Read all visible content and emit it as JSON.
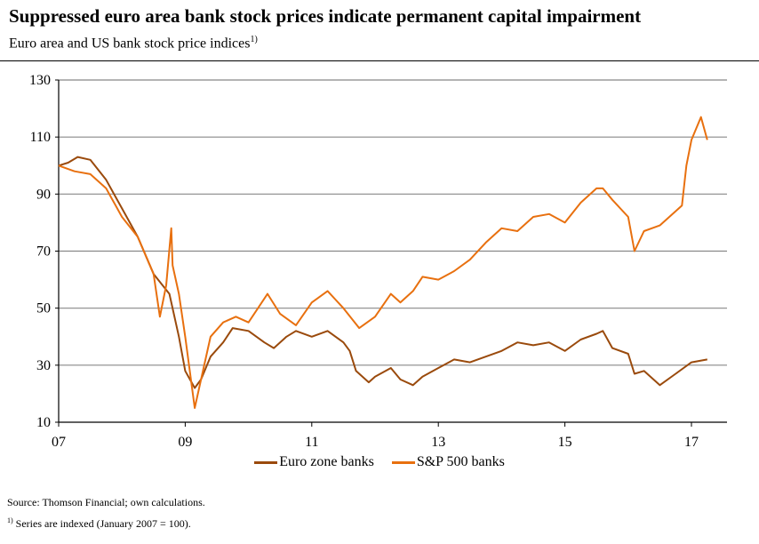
{
  "chart_data": {
    "type": "line",
    "title": "Suppressed euro area bank stock prices indicate permanent capital impairment",
    "subtitle": "Euro area and US bank stock price indices",
    "subtitle_note_mark": "1)",
    "xlabel": "",
    "ylabel": "",
    "xlim": [
      2007,
      2017.75
    ],
    "ylim": [
      10,
      130
    ],
    "y_ticks": [
      10,
      30,
      50,
      70,
      90,
      110,
      130
    ],
    "x_ticks": [
      {
        "value": 2007,
        "label": "07"
      },
      {
        "value": 2009,
        "label": "09"
      },
      {
        "value": 2011,
        "label": "11"
      },
      {
        "value": 2013,
        "label": "13"
      },
      {
        "value": 2015,
        "label": "15"
      },
      {
        "value": 2017,
        "label": "17"
      }
    ],
    "grid": true,
    "legend_position": "bottom",
    "series": [
      {
        "name": "Euro zone banks",
        "color": "#9a4a0c",
        "x": [
          2007.0,
          2007.15,
          2007.3,
          2007.5,
          2007.75,
          2008.0,
          2008.25,
          2008.5,
          2008.75,
          2008.9,
          2009.0,
          2009.15,
          2009.25,
          2009.4,
          2009.6,
          2009.75,
          2010.0,
          2010.25,
          2010.4,
          2010.6,
          2010.75,
          2011.0,
          2011.25,
          2011.5,
          2011.6,
          2011.7,
          2011.9,
          2012.0,
          2012.25,
          2012.4,
          2012.6,
          2012.75,
          2013.0,
          2013.25,
          2013.5,
          2013.75,
          2014.0,
          2014.25,
          2014.5,
          2014.75,
          2015.0,
          2015.25,
          2015.5,
          2015.6,
          2015.75,
          2016.0,
          2016.1,
          2016.25,
          2016.5,
          2016.75,
          2017.0,
          2017.25
        ],
        "values": [
          100,
          101,
          103,
          102,
          95,
          85,
          75,
          62,
          55,
          40,
          28,
          22,
          25,
          33,
          38,
          43,
          42,
          38,
          36,
          40,
          42,
          40,
          42,
          38,
          35,
          28,
          24,
          26,
          29,
          25,
          23,
          26,
          29,
          32,
          31,
          33,
          35,
          38,
          37,
          38,
          35,
          39,
          41,
          42,
          36,
          34,
          27,
          28,
          23,
          27,
          31,
          32
        ]
      },
      {
        "name": "S&P 500 banks",
        "color": "#e8700f",
        "x": [
          2007.0,
          2007.25,
          2007.5,
          2007.75,
          2008.0,
          2008.25,
          2008.5,
          2008.6,
          2008.7,
          2008.78,
          2008.8,
          2008.9,
          2009.0,
          2009.15,
          2009.25,
          2009.4,
          2009.6,
          2009.8,
          2010.0,
          2010.3,
          2010.5,
          2010.75,
          2011.0,
          2011.25,
          2011.5,
          2011.75,
          2012.0,
          2012.25,
          2012.4,
          2012.6,
          2012.75,
          2013.0,
          2013.25,
          2013.5,
          2013.75,
          2014.0,
          2014.25,
          2014.5,
          2014.75,
          2015.0,
          2015.25,
          2015.5,
          2015.6,
          2015.75,
          2016.0,
          2016.1,
          2016.25,
          2016.5,
          2016.75,
          2016.85,
          2016.92,
          2017.0,
          2017.15,
          2017.25
        ],
        "values": [
          100,
          98,
          97,
          92,
          82,
          75,
          62,
          47,
          58,
          78,
          65,
          55,
          40,
          15,
          25,
          40,
          45,
          47,
          45,
          55,
          48,
          44,
          52,
          56,
          50,
          43,
          47,
          55,
          52,
          56,
          61,
          60,
          63,
          67,
          73,
          78,
          77,
          82,
          83,
          80,
          87,
          92,
          92,
          88,
          82,
          70,
          77,
          79,
          84,
          86,
          100,
          109,
          117,
          109
        ]
      }
    ]
  },
  "footer": {
    "source": "Source: Thomson Financial; own calculations.",
    "note_mark": "1)",
    "note": "Series are indexed (January 2007 = 100)."
  }
}
